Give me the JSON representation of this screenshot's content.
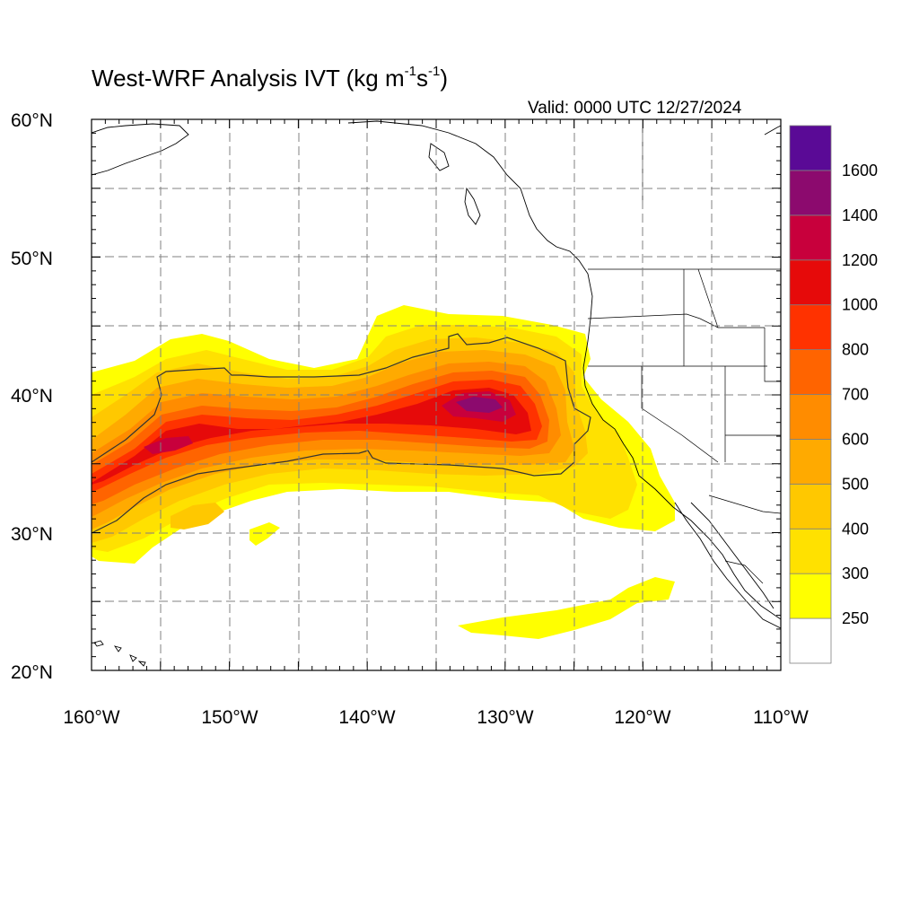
{
  "title": {
    "prefix": "West-WRF Analysis IVT (kg m",
    "exp1": "-1",
    "middle": "s",
    "exp2": "-1",
    "suffix": ")"
  },
  "valid": "Valid: 0000 UTC 12/27/2024",
  "map": {
    "lon_range": [
      -160,
      -110
    ],
    "lat_range": [
      20,
      60
    ],
    "lon_labels": [
      "160°W",
      "150°W",
      "140°W",
      "130°W",
      "120°W",
      "110°W"
    ],
    "lat_labels": [
      "60°N",
      "50°N",
      "40°N",
      "30°N",
      "20°N"
    ],
    "grid": "dashed, every 5 degrees"
  },
  "colorbar": {
    "levels": [
      "250",
      "300",
      "400",
      "500",
      "600",
      "700",
      "800",
      "1000",
      "1200",
      "1400",
      "1600"
    ],
    "colors": [
      "#ffffff",
      "#ffff00",
      "#ffe100",
      "#ffc800",
      "#ffaa00",
      "#ff8c00",
      "#ff6400",
      "#ff3200",
      "#e60a0a",
      "#c8003c",
      "#8c0a6e",
      "#5a0a96"
    ]
  },
  "contour_line_value": 500
}
